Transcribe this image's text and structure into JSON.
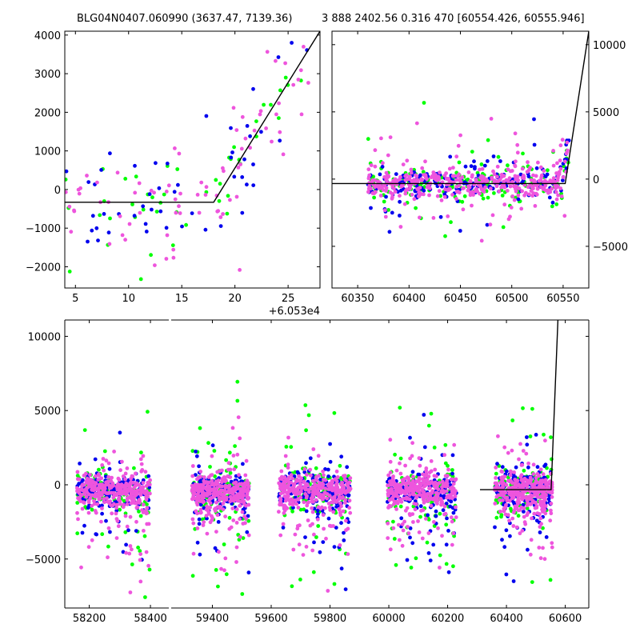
{
  "titles": {
    "left": "BLG04N0407.060990 (3637.47, 7139.36)",
    "right": "3 888 2402.56 0.316 470 [60554.426, 60555.946]"
  },
  "colors": {
    "green": "#00ff00",
    "blue": "#0000ee",
    "pink": "#ee55dd",
    "model": "#000000"
  },
  "chart_data": [
    {
      "type": "scatter",
      "panel": "top-left zoom",
      "xlim": [
        4,
        28
      ],
      "ylim": [
        -2550,
        4100
      ],
      "x_offset_label": "+6.053e4",
      "xticks": [
        5,
        10,
        15,
        20,
        25
      ],
      "xtick_labels": [
        "5",
        "10",
        "15",
        "20",
        "25"
      ],
      "yticks": [
        -2000,
        -1000,
        0,
        1000,
        2000,
        3000,
        4000
      ],
      "ytick_labels": [
        "−2000",
        "−1000",
        "0",
        "1000",
        "2000",
        "3000",
        "4000"
      ],
      "model_line": [
        [
          4,
          -330
        ],
        [
          18,
          -330
        ],
        [
          28,
          4100
        ]
      ]
    },
    {
      "type": "scatter",
      "panel": "top-right season",
      "xlim": [
        60325,
        60575
      ],
      "ylim": [
        -8100,
        11000
      ],
      "xticks": [
        60350,
        60400,
        60450,
        60500,
        60550
      ],
      "xtick_labels": [
        "60350",
        "60400",
        "60450",
        "60500",
        "60550"
      ],
      "yticks": [
        -5000,
        0,
        5000,
        10000
      ],
      "ytick_labels": [
        "−5000",
        "0",
        "5000",
        "10000"
      ],
      "y_axis_side": "right",
      "model_line": [
        [
          60325,
          -330
        ],
        [
          60552,
          -330
        ],
        [
          60575,
          11000
        ]
      ]
    },
    {
      "type": "scatter",
      "panel": "bottom full lightcurve, broken x-axis",
      "ylim": [
        -8300,
        11100
      ],
      "segments": [
        {
          "xlim": [
            58120,
            58460
          ],
          "xticks": [
            58200,
            58400
          ],
          "xtick_labels": [
            "58200",
            "58400"
          ]
        },
        {
          "xlim": [
            59260,
            60680
          ],
          "xticks": [
            59400,
            59600,
            59800,
            60000,
            60200,
            60400,
            60600
          ],
          "xtick_labels": [
            "59400",
            "59600",
            "59800",
            "60000",
            "60200",
            "60400",
            "60600"
          ]
        }
      ],
      "yticks": [
        -5000,
        0,
        5000,
        10000
      ],
      "ytick_labels": [
        "−5000",
        "0",
        "5000",
        "10000"
      ],
      "seasons": [
        {
          "x": [
            58160,
            58400
          ],
          "first_axis": true
        },
        {
          "x": [
            59330,
            59525
          ]
        },
        {
          "x": [
            59625,
            59870
          ]
        },
        {
          "x": [
            59995,
            60230
          ]
        },
        {
          "x": [
            60360,
            60556
          ]
        }
      ],
      "model_line": [
        [
          60310,
          -330
        ],
        [
          60552,
          -330
        ],
        [
          60575,
          11100
        ]
      ]
    }
  ]
}
